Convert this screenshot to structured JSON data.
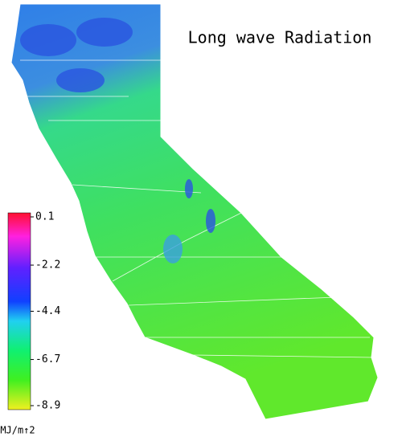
{
  "title": "Long wave Radiation",
  "colorbar": {
    "ticks": [
      0.1,
      -2.2,
      -4.4,
      -6.7,
      -8.9
    ],
    "unit": "MJ/m↑2"
  }
}
